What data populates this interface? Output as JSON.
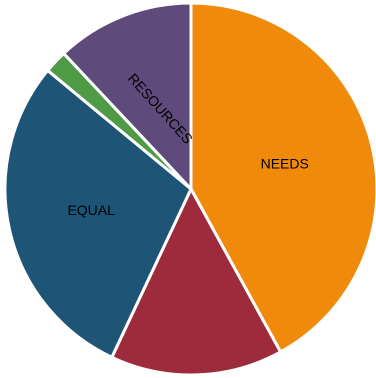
{
  "chart_data": {
    "type": "pie",
    "slices": [
      {
        "label": "NEEDS",
        "value": 42,
        "color": "#f08a0b"
      },
      {
        "label": "",
        "value": 15,
        "color": "#9e2b3c"
      },
      {
        "label": "EQUAL",
        "value": 29,
        "color": "#1e5577"
      },
      {
        "label": "",
        "value": 2,
        "color": "#4f9a45"
      },
      {
        "label": "RESOURCES",
        "value": 12,
        "color": "#5f4a7c"
      }
    ],
    "legend": "none",
    "start": "12 o'clock",
    "direction": "clockwise"
  }
}
